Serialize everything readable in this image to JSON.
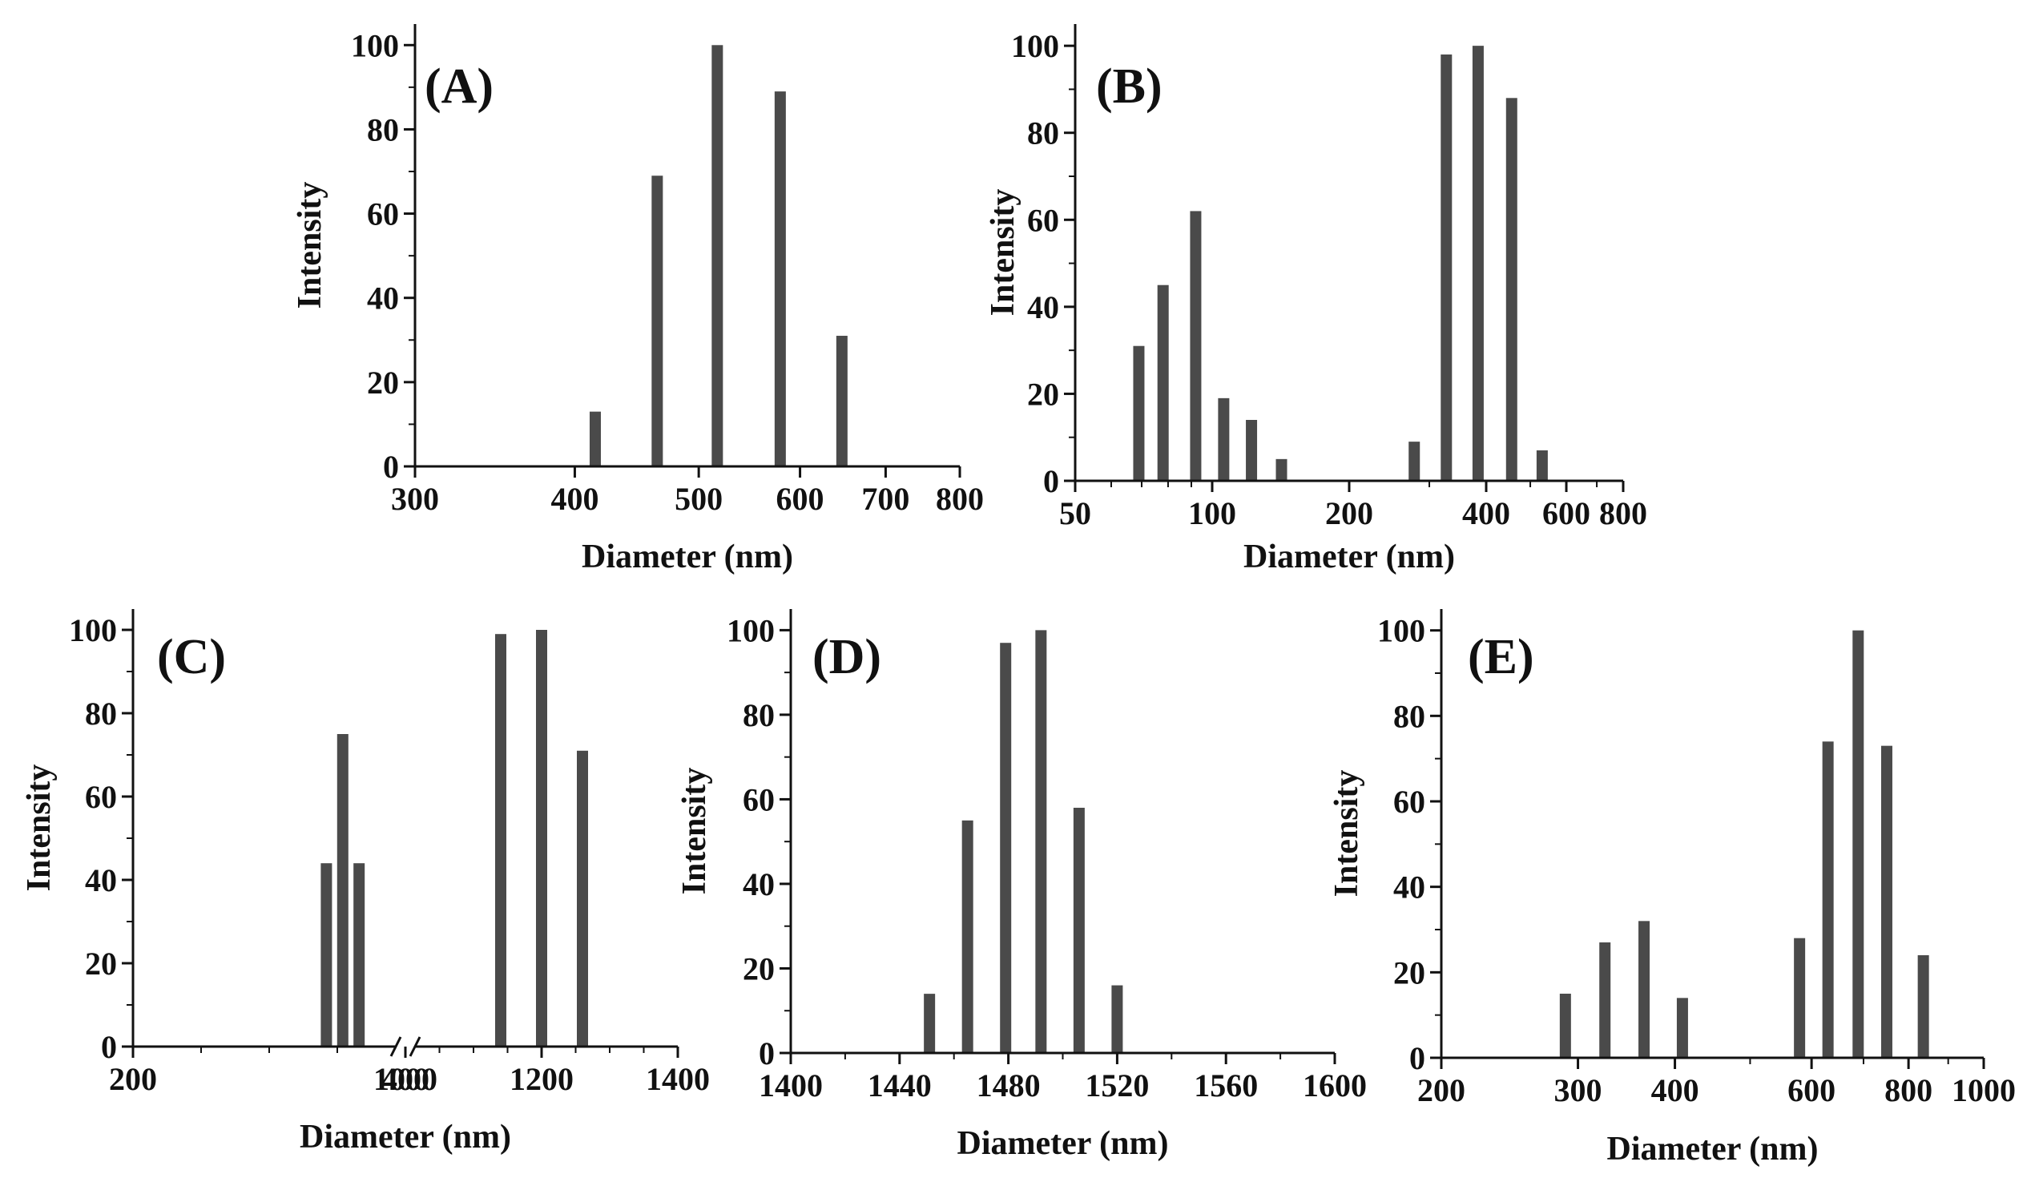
{
  "figure": {
    "bar_color": "#4a4a4a",
    "axis_color": "#111111",
    "background": "#ffffff"
  },
  "chart_data": [
    {
      "id": "A",
      "type": "bar",
      "panel_label": "(A)",
      "xlabel": "Diameter (nm)",
      "ylabel": "Intensity",
      "xscale": "log",
      "xlim": [
        300,
        800
      ],
      "ylim": [
        0,
        105
      ],
      "xticks": [
        300,
        400,
        500,
        600,
        700,
        800
      ],
      "xtick_labels": [
        "300",
        "400",
        "500",
        "600",
        "700",
        "800"
      ],
      "yticks": [
        0,
        20,
        40,
        60,
        80,
        100
      ],
      "ytick_labels": [
        "0",
        "20",
        "40",
        "60",
        "80",
        "100"
      ],
      "x": [
        415,
        464,
        517,
        579,
        647
      ],
      "values": [
        13,
        69,
        100,
        89,
        31
      ]
    },
    {
      "id": "B",
      "type": "bar",
      "panel_label": "(B)",
      "xlabel": "Diameter (nm)",
      "ylabel": "Intensity",
      "xscale": "log",
      "xlim": [
        50,
        800
      ],
      "ylim": [
        0,
        105
      ],
      "xticks": [
        50,
        100,
        200,
        400,
        600,
        800
      ],
      "xtick_labels": [
        "50",
        "100",
        "200",
        "400",
        "600",
        "800"
      ],
      "yticks": [
        0,
        20,
        40,
        60,
        80,
        100
      ],
      "ytick_labels": [
        "0",
        "20",
        "40",
        "60",
        "80",
        "100"
      ],
      "x": [
        69,
        78,
        92,
        106,
        122,
        142,
        278,
        327,
        384,
        455,
        531
      ],
      "values": [
        31,
        45,
        62,
        19,
        14,
        5,
        9,
        98,
        100,
        88,
        7
      ]
    },
    {
      "id": "C",
      "type": "bar",
      "panel_label": "(C)",
      "xlabel": "Diameter (nm)",
      "ylabel": "Intensity",
      "xscale": "broken",
      "xlim": [
        200,
        1400
      ],
      "axis_break": [
        400,
        1000
      ],
      "ylim": [
        0,
        105
      ],
      "xticks": [
        200,
        400,
        1000,
        1200,
        1400
      ],
      "xtick_labels": [
        "200",
        "400",
        "1000",
        "1200",
        "1400"
      ],
      "yticks": [
        0,
        20,
        40,
        60,
        80,
        100
      ],
      "ytick_labels": [
        "0",
        "20",
        "40",
        "60",
        "80",
        "100"
      ],
      "x": [
        342,
        354,
        366,
        1140,
        1200,
        1260
      ],
      "values": [
        44,
        75,
        44,
        99,
        100,
        71
      ]
    },
    {
      "id": "D",
      "type": "bar",
      "panel_label": "(D)",
      "xlabel": "Diameter (nm)",
      "ylabel": "Intensity",
      "xscale": "linear",
      "xlim": [
        1400,
        1600
      ],
      "ylim": [
        0,
        105
      ],
      "xticks": [
        1400,
        1440,
        1480,
        1520,
        1560,
        1600
      ],
      "xtick_labels": [
        "1400",
        "1440",
        "1480",
        "1520",
        "1560",
        "1600"
      ],
      "yticks": [
        0,
        20,
        40,
        60,
        80,
        100
      ],
      "ytick_labels": [
        "0",
        "20",
        "40",
        "60",
        "80",
        "100"
      ],
      "x": [
        1451,
        1465,
        1479,
        1492,
        1506,
        1520
      ],
      "values": [
        14,
        55,
        97,
        100,
        58,
        16
      ]
    },
    {
      "id": "E",
      "type": "bar",
      "panel_label": "(E)",
      "xlabel": "Diameter (nm)",
      "ylabel": "Intensity",
      "xscale": "log",
      "xlim": [
        200,
        1000
      ],
      "ylim": [
        0,
        105
      ],
      "xticks": [
        200,
        300,
        400,
        600,
        800,
        1000
      ],
      "xtick_labels": [
        "200",
        "300",
        "400",
        "600",
        "800",
        "1000"
      ],
      "yticks": [
        0,
        20,
        40,
        60,
        80,
        100
      ],
      "ytick_labels": [
        "0",
        "20",
        "40",
        "60",
        "80",
        "100"
      ],
      "x": [
        289,
        325,
        365,
        409,
        579,
        630,
        689,
        750,
        836
      ],
      "values": [
        15,
        27,
        32,
        14,
        28,
        74,
        100,
        73,
        24
      ]
    }
  ]
}
